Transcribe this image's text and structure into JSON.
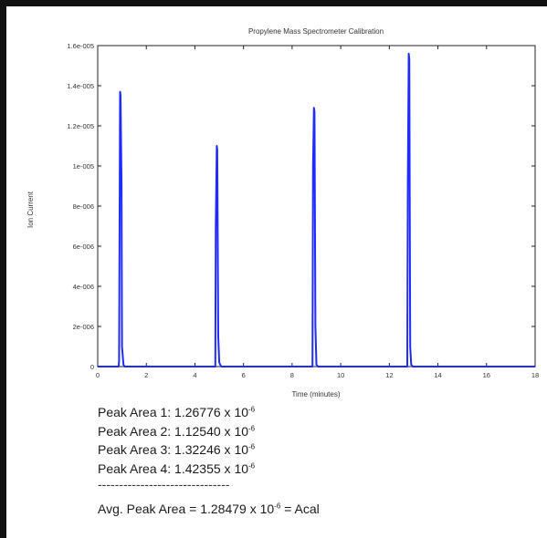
{
  "chart_data": {
    "type": "line",
    "title": "Propylene Mass Spectrometer Calibration",
    "xlabel": "Time (minutes)",
    "ylabel": "Ion Current",
    "xlim": [
      0,
      18
    ],
    "ylim": [
      0,
      1.6e-05
    ],
    "x_ticks": [
      0,
      2,
      4,
      6,
      8,
      10,
      12,
      14,
      16,
      18
    ],
    "x_tick_labels": [
      "0",
      "2",
      "4",
      "6",
      "8",
      "10",
      "12",
      "14",
      "16",
      "18"
    ],
    "y_ticks": [
      0,
      2e-06,
      4e-06,
      6e-06,
      8e-06,
      1e-05,
      1.2e-05,
      1.4e-05,
      1.6e-05
    ],
    "y_tick_labels": [
      "0",
      "2e-006",
      "4e-006",
      "6e-006",
      "8e-006",
      "1e-005",
      "1.2e-005",
      "1.4e-005",
      "1.6e-005"
    ],
    "grid": false,
    "series": [
      {
        "color": "#1f2bff",
        "x": [
          0,
          0.86,
          0.88,
          0.92,
          0.94,
          0.98,
          1.0,
          1.06,
          1.1,
          4.84,
          4.86,
          4.9,
          4.92,
          4.96,
          5.0,
          5.08,
          8.84,
          8.86,
          8.9,
          8.92,
          8.96,
          9.0,
          9.06,
          12.74,
          12.76,
          12.8,
          12.82,
          12.86,
          12.9,
          12.96,
          18
        ],
        "y": [
          0,
          0,
          3e-07,
          1.37e-05,
          1.35e-05,
          9e-06,
          1e-06,
          1e-07,
          0,
          0,
          7e-06,
          1.1e-05,
          1.08e-05,
          1.5e-06,
          2e-07,
          0,
          0,
          1e-05,
          1.29e-05,
          1.27e-05,
          2e-06,
          1e-07,
          0,
          0,
          9.2e-06,
          1.56e-05,
          1.53e-05,
          1e-06,
          1e-07,
          0,
          0
        ]
      }
    ]
  },
  "notes": {
    "peak1": {
      "text": "Peak Area 1: 1.26776 x 10",
      "exp": "-6"
    },
    "peak2": {
      "text": "Peak Area 2: 1.12540 x 10",
      "exp": "-6"
    },
    "peak3": {
      "text": "Peak Area 3: 1.32246 x 10",
      "exp": "-6"
    },
    "peak4": {
      "text": "Peak Area 4: 1.42355 x 10",
      "exp": "-6"
    },
    "divider": "-------------------------------",
    "avg_prefix": "Avg. Peak Area = 1.28479 x 10",
    "avg_exp": "-6",
    "avg_suffix": " = Acal"
  }
}
